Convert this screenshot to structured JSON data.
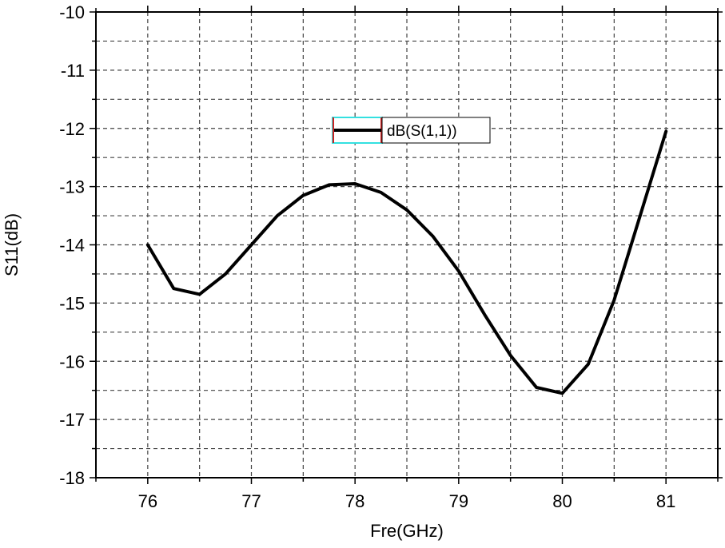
{
  "chart_data": {
    "type": "line",
    "xlabel": "Fre(GHz)",
    "ylabel": "S11(dB)",
    "xlim": [
      75.5,
      81.5
    ],
    "ylim": [
      -18,
      -10
    ],
    "xticks": [
      76,
      77,
      78,
      79,
      80,
      81
    ],
    "yticks": [
      -18,
      -17,
      -16,
      -15,
      -14,
      -13,
      -12,
      -11,
      -10
    ],
    "x_tick_labels": [
      "76",
      "77",
      "78",
      "79",
      "80",
      "81"
    ],
    "y_tick_labels": [
      "-18",
      "-17",
      "-16",
      "-15",
      "-14",
      "-13",
      "-12",
      "-11",
      "-10"
    ],
    "grid": true,
    "legend_placement": "top-center",
    "series": [
      {
        "name": "dB(S(1,1))",
        "color": "#000000",
        "x": [
          76.0,
          76.25,
          76.5,
          76.75,
          77.0,
          77.25,
          77.5,
          77.75,
          78.0,
          78.25,
          78.5,
          78.75,
          79.0,
          79.25,
          79.5,
          79.75,
          80.0,
          80.25,
          80.5,
          80.75,
          81.0
        ],
        "y": [
          -14.0,
          -14.75,
          -14.85,
          -14.5,
          -14.0,
          -13.5,
          -13.15,
          -12.97,
          -12.95,
          -13.1,
          -13.4,
          -13.85,
          -14.45,
          -15.2,
          -15.9,
          -16.45,
          -16.55,
          -16.05,
          -14.95,
          -13.5,
          -12.05
        ]
      }
    ]
  },
  "legend": {
    "label": "dB(S(1,1))",
    "box_colors": {
      "outline": "#33e0e0",
      "marker": "#cc2222"
    }
  }
}
